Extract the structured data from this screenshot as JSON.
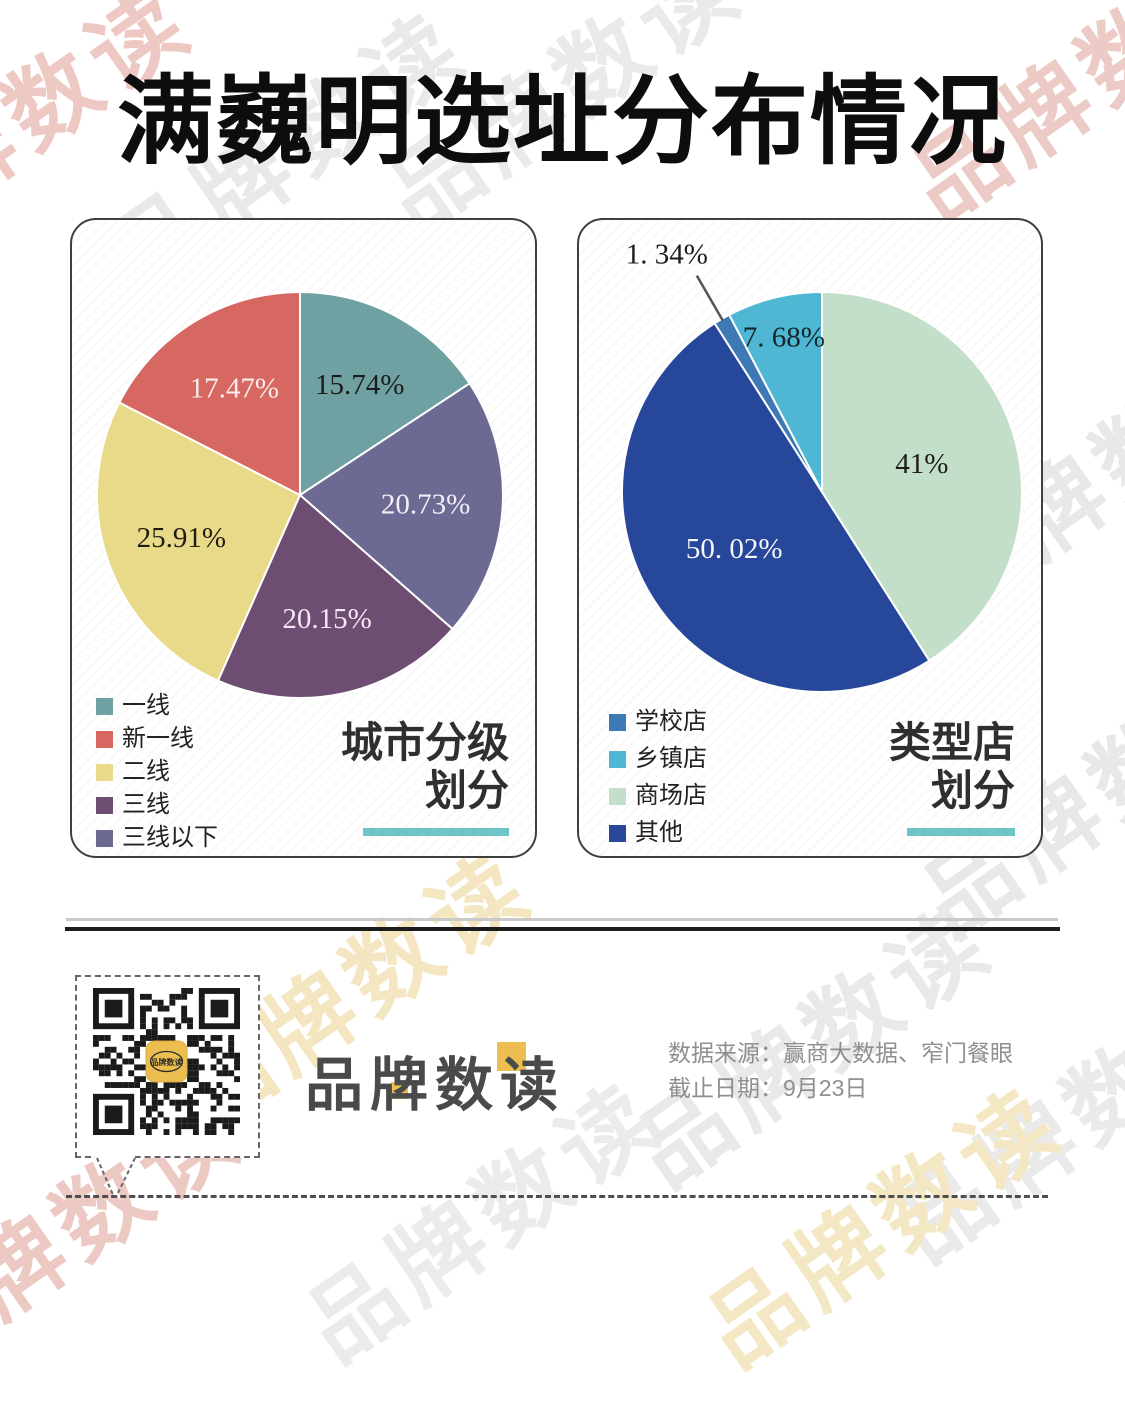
{
  "header": {
    "title": "满巍明选址分布情况"
  },
  "watermark": {
    "text": "品牌数读",
    "colors": {
      "gray": "#e9e9e9",
      "red": "#eec9c4",
      "yellow": "#f4e6c0"
    }
  },
  "chart_data": [
    {
      "type": "pie",
      "title": "城市分级划分",
      "panel_title_lines": [
        "城市分级",
        "划分"
      ],
      "underline_color": "#6CC6C7",
      "direction": "clockwise-from-top",
      "labels": [
        "一线",
        "新一线",
        "二线",
        "三线",
        "三线以下"
      ],
      "values": [
        15.74,
        17.47,
        25.91,
        20.15,
        20.73
      ],
      "slices": [
        {
          "label": "一线",
          "value": 15.74,
          "display": "15.74%",
          "color": "#6FA1A2",
          "label_color": "#1c1c1c"
        },
        {
          "label": "三线以下",
          "value": 20.73,
          "display": "20.73%",
          "color": "#6C6A92",
          "label_color": "#f2eff6"
        },
        {
          "label": "三线",
          "value": 20.15,
          "display": "20.15%",
          "color": "#6E4D72",
          "label_color": "#f4e9f3"
        },
        {
          "label": "二线",
          "value": 25.91,
          "display": "25.91%",
          "color": "#E9DA8A",
          "label_color": "#201c10"
        },
        {
          "label": "新一线",
          "value": 17.47,
          "display": "17.47%",
          "color": "#D76761",
          "label_color": "#faeeec"
        }
      ],
      "legend": [
        {
          "label": "一线",
          "color": "#6FA1A2"
        },
        {
          "label": "新一线",
          "color": "#D76761"
        },
        {
          "label": "二线",
          "color": "#E9DA8A"
        },
        {
          "label": "三线",
          "color": "#6E4D72"
        },
        {
          "label": "三线以下",
          "color": "#6C6A92"
        }
      ]
    },
    {
      "type": "pie",
      "title": "类型店划分",
      "panel_title_lines": [
        "类型店",
        "划分"
      ],
      "underline_color": "#6CC6C7",
      "direction": "clockwise-from-top",
      "labels": [
        "学校店",
        "乡镇店",
        "商场店",
        "其他"
      ],
      "values": [
        1.34,
        7.68,
        41,
        50.02
      ],
      "slices": [
        {
          "label": "商场店",
          "value": 41,
          "display": "41%",
          "color": "#C4DFC9",
          "label_color": "#1c1c1c"
        },
        {
          "label": "其他",
          "value": 50.02,
          "display": "50. 02%",
          "color": "#27489A",
          "label_color": "#f5f7fb"
        },
        {
          "label": "学校店",
          "value": 1.34,
          "display": "1. 34%",
          "color": "#3D7AB5",
          "label_color": "#1c1c1c",
          "label_outside": true
        },
        {
          "label": "乡镇店",
          "value": 7.68,
          "display": "7. 68%",
          "color": "#4FB6D3",
          "label_color": "#15262b"
        }
      ],
      "legend": [
        {
          "label": "学校店",
          "color": "#3D7AB5"
        },
        {
          "label": "乡镇店",
          "color": "#4FB6D3"
        },
        {
          "label": "商场店",
          "color": "#C4DFC9"
        },
        {
          "label": "其他",
          "color": "#27489A"
        }
      ]
    }
  ],
  "footer": {
    "logo_text": "品牌数读",
    "qr_logo_text": "品牌数读",
    "accent_gold": "#ECBE4F",
    "source_line1": "数据来源：赢商大数据、窄门餐眼",
    "source_line2": "截止日期：9月23日"
  }
}
